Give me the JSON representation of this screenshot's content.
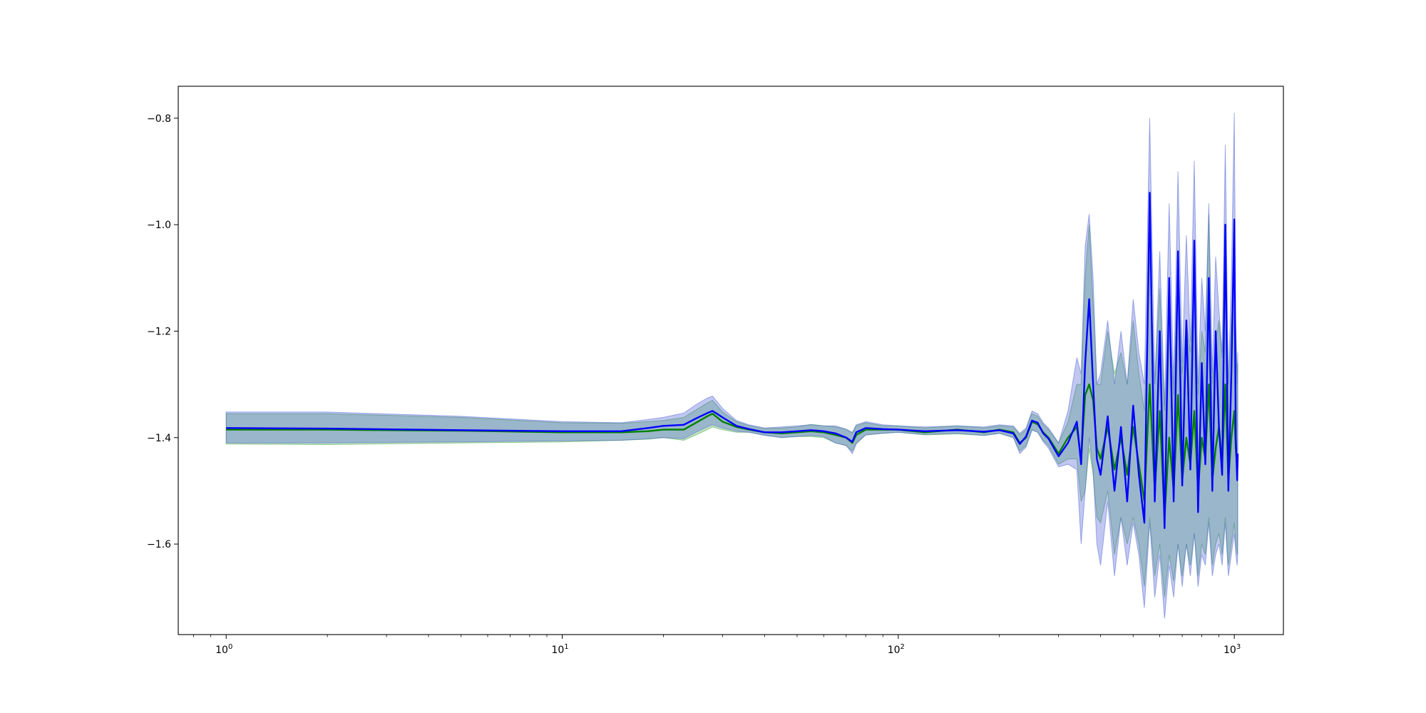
{
  "chart_data": {
    "type": "line",
    "title": "",
    "xlabel": "",
    "ylabel": "",
    "xscale": "log",
    "xlim": [
      0.72,
      1400
    ],
    "ylim": [
      -1.77,
      -0.74
    ],
    "grid": false,
    "legend": "none",
    "x_ticks": [
      {
        "value": 1,
        "base": "10",
        "exp": "0"
      },
      {
        "value": 10,
        "base": "10",
        "exp": "1"
      },
      {
        "value": 100,
        "base": "10",
        "exp": "2"
      },
      {
        "value": 1000,
        "base": "10",
        "exp": "3"
      }
    ],
    "y_ticks": [
      {
        "value": -0.8,
        "label": "−0.8"
      },
      {
        "value": -1.0,
        "label": "−1.0"
      },
      {
        "value": -1.2,
        "label": "−1.2"
      },
      {
        "value": -1.4,
        "label": "−1.4"
      },
      {
        "value": -1.6,
        "label": "−1.6"
      }
    ],
    "series": [
      {
        "color": "#008000",
        "band_color": "#2ca02c",
        "x": [
          1,
          2,
          5,
          10,
          15,
          18,
          20,
          23,
          25,
          27,
          28,
          30,
          33,
          36,
          40,
          45,
          50,
          55,
          60,
          65,
          70,
          73,
          75,
          80,
          90,
          100,
          120,
          150,
          180,
          200,
          220,
          230,
          240,
          250,
          260,
          270,
          280,
          300,
          320,
          340,
          350,
          360,
          370,
          380,
          390,
          400,
          420,
          440,
          460,
          480,
          500,
          520,
          540,
          560,
          580,
          600,
          620,
          640,
          660,
          680,
          700,
          720,
          740,
          760,
          780,
          800,
          820,
          840,
          860,
          880,
          900,
          920,
          940,
          960,
          980,
          1000,
          1010,
          1020,
          1024
        ],
        "y": [
          -1.385,
          -1.385,
          -1.387,
          -1.39,
          -1.39,
          -1.388,
          -1.385,
          -1.385,
          -1.372,
          -1.36,
          -1.355,
          -1.37,
          -1.38,
          -1.385,
          -1.39,
          -1.392,
          -1.39,
          -1.388,
          -1.39,
          -1.395,
          -1.4,
          -1.41,
          -1.395,
          -1.385,
          -1.385,
          -1.385,
          -1.39,
          -1.385,
          -1.39,
          -1.385,
          -1.39,
          -1.41,
          -1.4,
          -1.37,
          -1.375,
          -1.39,
          -1.4,
          -1.43,
          -1.4,
          -1.38,
          -1.44,
          -1.32,
          -1.3,
          -1.33,
          -1.42,
          -1.44,
          -1.38,
          -1.46,
          -1.4,
          -1.47,
          -1.38,
          -1.45,
          -1.52,
          -1.3,
          -1.5,
          -1.35,
          -1.55,
          -1.4,
          -1.5,
          -1.32,
          -1.48,
          -1.4,
          -1.45,
          -1.35,
          -1.5,
          -1.4,
          -1.44,
          -1.3,
          -1.48,
          -1.42,
          -1.38,
          -1.45,
          -1.3,
          -1.48,
          -1.4,
          -1.35,
          -1.42,
          -1.46,
          -1.44
        ],
        "lower": [
          -1.412,
          -1.413,
          -1.41,
          -1.408,
          -1.405,
          -1.403,
          -1.4,
          -1.405,
          -1.395,
          -1.385,
          -1.38,
          -1.385,
          -1.39,
          -1.39,
          -1.395,
          -1.4,
          -1.398,
          -1.398,
          -1.4,
          -1.41,
          -1.415,
          -1.425,
          -1.41,
          -1.395,
          -1.392,
          -1.39,
          -1.395,
          -1.393,
          -1.396,
          -1.392,
          -1.4,
          -1.425,
          -1.415,
          -1.385,
          -1.39,
          -1.405,
          -1.415,
          -1.45,
          -1.44,
          -1.44,
          -1.52,
          -1.5,
          -1.42,
          -1.47,
          -1.55,
          -1.56,
          -1.5,
          -1.62,
          -1.55,
          -1.6,
          -1.55,
          -1.6,
          -1.68,
          -1.55,
          -1.66,
          -1.6,
          -1.7,
          -1.62,
          -1.67,
          -1.6,
          -1.66,
          -1.6,
          -1.64,
          -1.58,
          -1.66,
          -1.6,
          -1.62,
          -1.55,
          -1.64,
          -1.6,
          -1.58,
          -1.62,
          -1.55,
          -1.64,
          -1.6,
          -1.56,
          -1.6,
          -1.62,
          -1.6
        ],
        "upper": [
          -1.355,
          -1.355,
          -1.362,
          -1.372,
          -1.373,
          -1.37,
          -1.368,
          -1.362,
          -1.348,
          -1.335,
          -1.33,
          -1.352,
          -1.37,
          -1.378,
          -1.383,
          -1.382,
          -1.38,
          -1.375,
          -1.378,
          -1.38,
          -1.385,
          -1.392,
          -1.378,
          -1.372,
          -1.378,
          -1.378,
          -1.382,
          -1.378,
          -1.382,
          -1.378,
          -1.38,
          -1.395,
          -1.385,
          -1.355,
          -1.36,
          -1.375,
          -1.385,
          -1.41,
          -1.37,
          -1.3,
          -1.3,
          -1.1,
          -1.0,
          -1.15,
          -1.3,
          -1.3,
          -1.2,
          -1.28,
          -1.24,
          -1.3,
          -1.18,
          -1.28,
          -1.35,
          -1.06,
          -1.3,
          -1.12,
          -1.35,
          -1.15,
          -1.32,
          -1.05,
          -1.28,
          -1.18,
          -1.24,
          -1.1,
          -1.32,
          -1.2,
          -1.24,
          -0.98,
          -1.3,
          -1.22,
          -1.18,
          -1.25,
          -1.0,
          -1.3,
          -1.18,
          -1.1,
          -1.2,
          -1.28,
          -1.26
        ]
      },
      {
        "color": "#0000ff",
        "band_color": "#4c5fd7",
        "x": [
          1,
          2,
          5,
          10,
          15,
          18,
          20,
          23,
          25,
          27,
          28,
          30,
          33,
          36,
          40,
          45,
          50,
          55,
          60,
          65,
          70,
          73,
          75,
          80,
          90,
          100,
          120,
          150,
          180,
          200,
          220,
          230,
          240,
          250,
          260,
          270,
          280,
          300,
          320,
          340,
          350,
          360,
          370,
          380,
          390,
          400,
          420,
          440,
          460,
          480,
          500,
          520,
          540,
          560,
          580,
          600,
          620,
          640,
          660,
          680,
          700,
          720,
          740,
          760,
          780,
          800,
          820,
          840,
          860,
          880,
          900,
          920,
          940,
          960,
          980,
          1000,
          1010,
          1020,
          1024
        ],
        "y": [
          -1.382,
          -1.383,
          -1.386,
          -1.388,
          -1.388,
          -1.382,
          -1.378,
          -1.376,
          -1.364,
          -1.354,
          -1.35,
          -1.362,
          -1.378,
          -1.384,
          -1.39,
          -1.39,
          -1.388,
          -1.386,
          -1.388,
          -1.392,
          -1.4,
          -1.408,
          -1.39,
          -1.382,
          -1.384,
          -1.385,
          -1.388,
          -1.386,
          -1.389,
          -1.386,
          -1.392,
          -1.412,
          -1.398,
          -1.368,
          -1.372,
          -1.392,
          -1.402,
          -1.435,
          -1.41,
          -1.37,
          -1.45,
          -1.26,
          -1.14,
          -1.3,
          -1.44,
          -1.47,
          -1.36,
          -1.5,
          -1.38,
          -1.52,
          -1.34,
          -1.47,
          -1.56,
          -0.94,
          -1.52,
          -1.2,
          -1.57,
          -1.1,
          -1.52,
          -1.05,
          -1.49,
          -1.18,
          -1.46,
          -1.03,
          -1.54,
          -1.26,
          -1.45,
          -1.1,
          -1.5,
          -1.2,
          -1.38,
          -1.47,
          -1.0,
          -1.5,
          -1.28,
          -0.99,
          -1.4,
          -1.48,
          -1.43
        ],
        "lower": [
          -1.41,
          -1.41,
          -1.408,
          -1.406,
          -1.405,
          -1.402,
          -1.4,
          -1.402,
          -1.39,
          -1.38,
          -1.376,
          -1.382,
          -1.388,
          -1.39,
          -1.396,
          -1.4,
          -1.398,
          -1.396,
          -1.398,
          -1.41,
          -1.415,
          -1.43,
          -1.412,
          -1.395,
          -1.392,
          -1.39,
          -1.394,
          -1.392,
          -1.396,
          -1.392,
          -1.4,
          -1.43,
          -1.418,
          -1.386,
          -1.39,
          -1.408,
          -1.42,
          -1.455,
          -1.45,
          -1.46,
          -1.6,
          -1.5,
          -1.4,
          -1.46,
          -1.6,
          -1.64,
          -1.52,
          -1.66,
          -1.55,
          -1.64,
          -1.56,
          -1.62,
          -1.72,
          -1.56,
          -1.7,
          -1.62,
          -1.74,
          -1.64,
          -1.7,
          -1.6,
          -1.68,
          -1.6,
          -1.66,
          -1.58,
          -1.68,
          -1.62,
          -1.64,
          -1.56,
          -1.66,
          -1.62,
          -1.6,
          -1.64,
          -1.56,
          -1.66,
          -1.62,
          -1.58,
          -1.62,
          -1.64,
          -1.62
        ],
        "upper": [
          -1.352,
          -1.352,
          -1.36,
          -1.37,
          -1.372,
          -1.366,
          -1.362,
          -1.354,
          -1.338,
          -1.326,
          -1.322,
          -1.345,
          -1.368,
          -1.376,
          -1.382,
          -1.38,
          -1.378,
          -1.376,
          -1.378,
          -1.378,
          -1.384,
          -1.39,
          -1.376,
          -1.37,
          -1.376,
          -1.378,
          -1.38,
          -1.378,
          -1.38,
          -1.376,
          -1.378,
          -1.392,
          -1.382,
          -1.35,
          -1.355,
          -1.372,
          -1.382,
          -1.41,
          -1.35,
          -1.25,
          -1.28,
          -1.04,
          -0.98,
          -1.1,
          -1.3,
          -1.28,
          -1.18,
          -1.3,
          -1.2,
          -1.3,
          -1.14,
          -1.24,
          -1.3,
          -0.8,
          -1.3,
          -1.05,
          -1.34,
          -0.96,
          -1.3,
          -0.9,
          -1.26,
          -1.02,
          -1.22,
          -0.88,
          -1.3,
          -1.1,
          -1.2,
          -0.96,
          -1.28,
          -1.06,
          -1.16,
          -1.24,
          -0.85,
          -1.3,
          -1.1,
          -0.79,
          -1.18,
          -1.3,
          -1.24
        ]
      }
    ]
  }
}
